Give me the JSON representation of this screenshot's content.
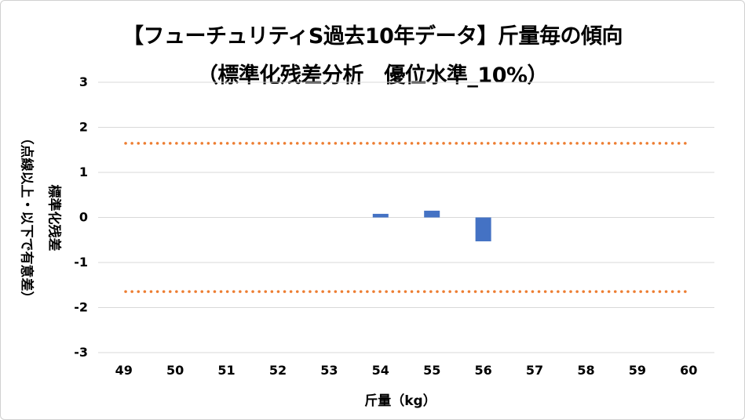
{
  "chart_data": {
    "type": "bar",
    "title": "【フューチュリティS過去10年データ】斤量毎の傾向",
    "subtitle": "（標準化残差分析　優位水準_10%）",
    "xlabel": "斤量（kg）",
    "ylabel_line1": "（点線以上・以下で有意差）",
    "ylabel_line2": "標準化残差",
    "categories": [
      "49",
      "50",
      "51",
      "52",
      "53",
      "54",
      "55",
      "56",
      "57",
      "58",
      "59",
      "60"
    ],
    "values": [
      null,
      null,
      null,
      null,
      null,
      0.08,
      0.15,
      -0.53,
      null,
      null,
      null,
      null
    ],
    "ylim": [
      -3,
      3
    ],
    "yticks": [
      3,
      2,
      1,
      0,
      -1,
      -2,
      -3
    ],
    "ytick_labels": [
      "3",
      "2",
      "1",
      "0",
      "-1",
      "-2",
      "-3"
    ],
    "threshold_upper": 1.645,
    "threshold_lower": -1.645,
    "grid": true,
    "legend": "none",
    "colors": {
      "bar": "#4472c4",
      "threshold": "#ed7d31",
      "grid": "#d9d9d9",
      "text": "#000000"
    }
  }
}
